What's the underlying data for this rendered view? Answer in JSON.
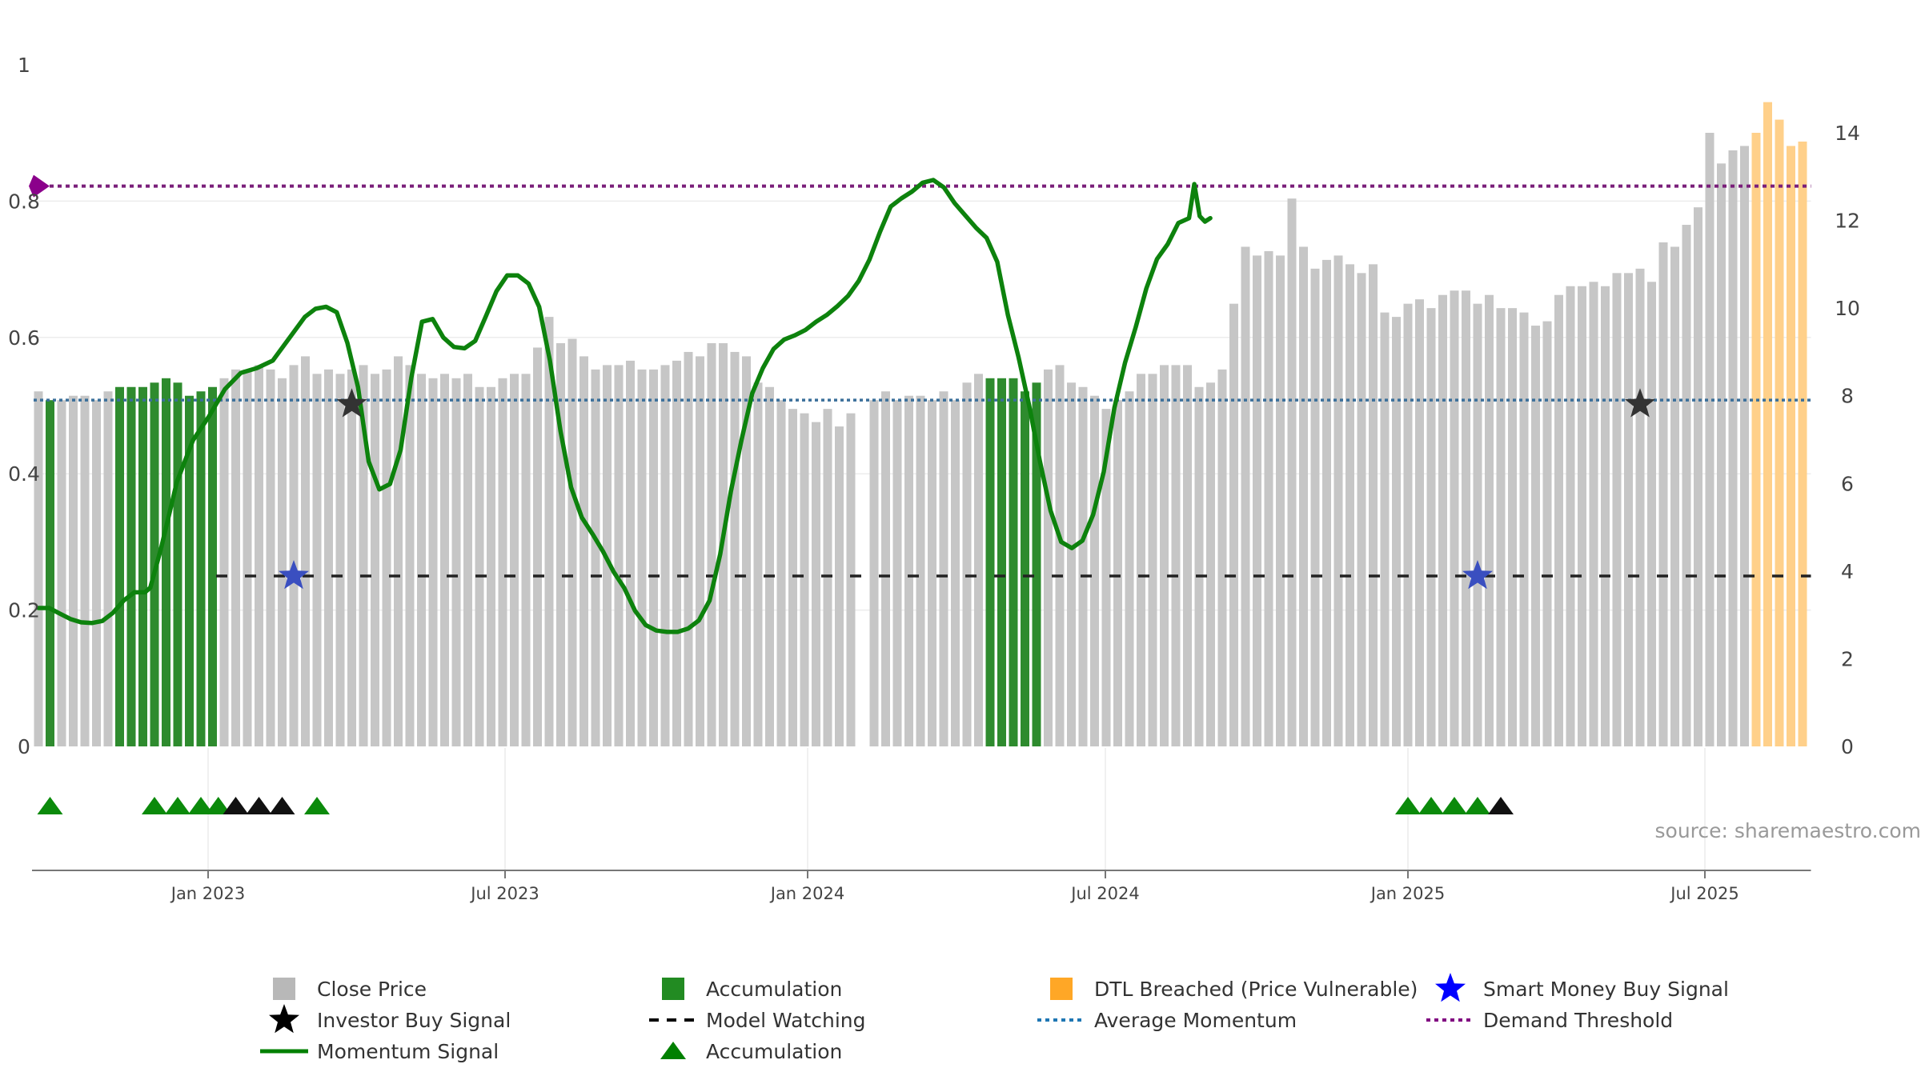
{
  "chart_data": {
    "type": "bar+line",
    "source": "source: sharemaestro.com",
    "left_axis": {
      "ylim": [
        0,
        1
      ],
      "ticks": [
        "0",
        "0.2",
        "0.4",
        "0.6",
        "0.8",
        "1"
      ]
    },
    "right_axis": {
      "ylim": [
        0,
        14
      ],
      "ticks": [
        "0",
        "2",
        "4",
        "6",
        "8",
        "10",
        "12",
        "14"
      ]
    },
    "x_axis": {
      "ticks": [
        "Jan 2023",
        "Jul 2023",
        "Jan 2024",
        "Jul 2024",
        "Jan 2025",
        "Jul 2025"
      ]
    },
    "close_prices": [
      8.1,
      7.9,
      7.9,
      8.0,
      8.0,
      7.9,
      8.1,
      8.2,
      8.2,
      8.2,
      8.3,
      8.4,
      8.3,
      8.0,
      8.1,
      8.2,
      8.4,
      8.6,
      8.6,
      8.7,
      8.6,
      8.4,
      8.7,
      8.9,
      8.5,
      8.6,
      8.5,
      8.6,
      8.7,
      8.5,
      8.6,
      8.9,
      8.7,
      8.5,
      8.4,
      8.5,
      8.4,
      8.5,
      8.2,
      8.2,
      8.4,
      8.5,
      8.5,
      9.1,
      9.8,
      9.2,
      9.3,
      8.9,
      8.6,
      8.7,
      8.7,
      8.8,
      8.6,
      8.6,
      8.7,
      8.8,
      9.0,
      8.9,
      9.2,
      9.2,
      9.0,
      8.9,
      8.3,
      8.2,
      7.9,
      7.7,
      7.6,
      7.4,
      7.7,
      7.3,
      7.6,
      0,
      7.9,
      8.1,
      7.9,
      8.0,
      8.0,
      7.9,
      8.1,
      7.9,
      8.3,
      8.5,
      8.4,
      8.4,
      8.4,
      8.1,
      8.3,
      8.6,
      8.7,
      8.3,
      8.2,
      8.0,
      7.7,
      7.9,
      8.1,
      8.5,
      8.5,
      8.7,
      8.7,
      8.7,
      8.2,
      8.3,
      8.6,
      10.1,
      11.4,
      11.2,
      11.3,
      11.2,
      12.5,
      11.4,
      10.9,
      11.1,
      11.2,
      11.0,
      10.8,
      11.0,
      9.9,
      9.8,
      10.1,
      10.2,
      10.0,
      10.3,
      10.4,
      10.4,
      10.1,
      10.3,
      10.0,
      10.0,
      9.9,
      9.6,
      9.7,
      10.3,
      10.5,
      10.5,
      10.6,
      10.5,
      10.8,
      10.8,
      10.9,
      10.6,
      11.5,
      11.4,
      11.9,
      12.3,
      14.0,
      13.3,
      13.6,
      13.7,
      14.0,
      14.7,
      14.3,
      13.7,
      13.8
    ],
    "accumulation_bar_indices": [
      1,
      7,
      8,
      9,
      10,
      11,
      12,
      13,
      14,
      15,
      82,
      83,
      84,
      85,
      86
    ],
    "dtl_breached_start_index": 148,
    "momentum_signal": [
      [
        0,
        0.203
      ],
      [
        2,
        0.203
      ],
      [
        4,
        0.195
      ],
      [
        6,
        0.187
      ],
      [
        8,
        0.182
      ],
      [
        10,
        0.181
      ],
      [
        12,
        0.184
      ],
      [
        14,
        0.196
      ],
      [
        16,
        0.214
      ],
      [
        18,
        0.226
      ],
      [
        20,
        0.226
      ],
      [
        21,
        0.233
      ],
      [
        23,
        0.29
      ],
      [
        26,
        0.388
      ],
      [
        29,
        0.449
      ],
      [
        32,
        0.484
      ],
      [
        35,
        0.524
      ],
      [
        38,
        0.548
      ],
      [
        41,
        0.555
      ],
      [
        44,
        0.566
      ],
      [
        47,
        0.598
      ],
      [
        50,
        0.63
      ],
      [
        52,
        0.642
      ],
      [
        54,
        0.645
      ],
      [
        56,
        0.637
      ],
      [
        58,
        0.592
      ],
      [
        60,
        0.527
      ],
      [
        62,
        0.418
      ],
      [
        64,
        0.377
      ],
      [
        66,
        0.385
      ],
      [
        68,
        0.435
      ],
      [
        70,
        0.541
      ],
      [
        72,
        0.623
      ],
      [
        74,
        0.627
      ],
      [
        76,
        0.6
      ],
      [
        78,
        0.586
      ],
      [
        80,
        0.584
      ],
      [
        82,
        0.595
      ],
      [
        84,
        0.631
      ],
      [
        86,
        0.668
      ],
      [
        88,
        0.691
      ],
      [
        90,
        0.691
      ],
      [
        92,
        0.679
      ],
      [
        94,
        0.645
      ],
      [
        96,
        0.567
      ],
      [
        98,
        0.463
      ],
      [
        100,
        0.38
      ],
      [
        102,
        0.336
      ],
      [
        104,
        0.312
      ],
      [
        106,
        0.286
      ],
      [
        108,
        0.256
      ],
      [
        110,
        0.232
      ],
      [
        112,
        0.199
      ],
      [
        114,
        0.178
      ],
      [
        116,
        0.17
      ],
      [
        118,
        0.168
      ],
      [
        120,
        0.168
      ],
      [
        122,
        0.173
      ],
      [
        124,
        0.185
      ],
      [
        126,
        0.214
      ],
      [
        128,
        0.282
      ],
      [
        130,
        0.374
      ],
      [
        132,
        0.45
      ],
      [
        134,
        0.518
      ],
      [
        136,
        0.555
      ],
      [
        138,
        0.583
      ],
      [
        140,
        0.597
      ],
      [
        142,
        0.603
      ],
      [
        144,
        0.611
      ],
      [
        146,
        0.623
      ],
      [
        148,
        0.633
      ],
      [
        150,
        0.646
      ],
      [
        152,
        0.661
      ],
      [
        154,
        0.683
      ],
      [
        156,
        0.714
      ],
      [
        158,
        0.755
      ],
      [
        160,
        0.792
      ],
      [
        162,
        0.804
      ],
      [
        164,
        0.814
      ],
      [
        166,
        0.827
      ],
      [
        168,
        0.831
      ],
      [
        170,
        0.82
      ],
      [
        172,
        0.797
      ],
      [
        174,
        0.779
      ],
      [
        176,
        0.761
      ],
      [
        178,
        0.746
      ],
      [
        180,
        0.711
      ],
      [
        182,
        0.633
      ],
      [
        184,
        0.571
      ],
      [
        186,
        0.5
      ],
      [
        188,
        0.419
      ],
      [
        190,
        0.346
      ],
      [
        192,
        0.3
      ],
      [
        194,
        0.291
      ],
      [
        196,
        0.302
      ],
      [
        198,
        0.34
      ],
      [
        200,
        0.403
      ],
      [
        202,
        0.497
      ],
      [
        204,
        0.563
      ],
      [
        206,
        0.615
      ],
      [
        208,
        0.672
      ],
      [
        210,
        0.715
      ],
      [
        212,
        0.737
      ],
      [
        214,
        0.768
      ],
      [
        216,
        0.775
      ],
      [
        217,
        0.825
      ],
      [
        218,
        0.778
      ],
      [
        219,
        0.77
      ],
      [
        220,
        0.775
      ]
    ],
    "model_watching_level": 0.25,
    "average_momentum": 0.508,
    "demand_threshold": 0.822,
    "investor_buy_signals": [
      [
        27,
        0.502
      ],
      [
        138,
        0.502
      ]
    ],
    "smart_money_buy_signals": [
      [
        22,
        0.25
      ],
      [
        124,
        0.25
      ]
    ],
    "accumulation_markers": [
      {
        "x": 1,
        "color": "green"
      },
      {
        "x": 10,
        "color": "green"
      },
      {
        "x": 12,
        "color": "green"
      },
      {
        "x": 14,
        "color": "green"
      },
      {
        "x": 15.5,
        "color": "green"
      },
      {
        "x": 17,
        "color": "black"
      },
      {
        "x": 19,
        "color": "black"
      },
      {
        "x": 21,
        "color": "black"
      },
      {
        "x": 24,
        "color": "green"
      },
      {
        "x": 118,
        "color": "green"
      },
      {
        "x": 120,
        "color": "green"
      },
      {
        "x": 122,
        "color": "green"
      },
      {
        "x": 124,
        "color": "green"
      },
      {
        "x": 126,
        "color": "black"
      }
    ],
    "legend": [
      {
        "label": "Close Price",
        "symbol": "square",
        "color": "#b8b8b8"
      },
      {
        "label": "Accumulation",
        "symbol": "square",
        "color": "#228b22"
      },
      {
        "label": "DTL Breached (Price Vulnerable)",
        "symbol": "square",
        "color": "#ffa726"
      },
      {
        "label": "Smart Money Buy Signal",
        "symbol": "star",
        "color": "#0000ff"
      },
      {
        "label": "Investor Buy Signal",
        "symbol": "star",
        "color": "#000000"
      },
      {
        "label": "Model Watching",
        "symbol": "dash",
        "color": "#000000"
      },
      {
        "label": "Average Momentum",
        "symbol": "dot",
        "color": "#1f77b4"
      },
      {
        "label": "Demand Threshold",
        "symbol": "dot",
        "color": "#800080"
      },
      {
        "label": "Momentum Signal",
        "symbol": "line",
        "color": "#008000"
      },
      {
        "label": "Accumulation",
        "symbol": "triangle",
        "color": "#008000"
      }
    ]
  }
}
